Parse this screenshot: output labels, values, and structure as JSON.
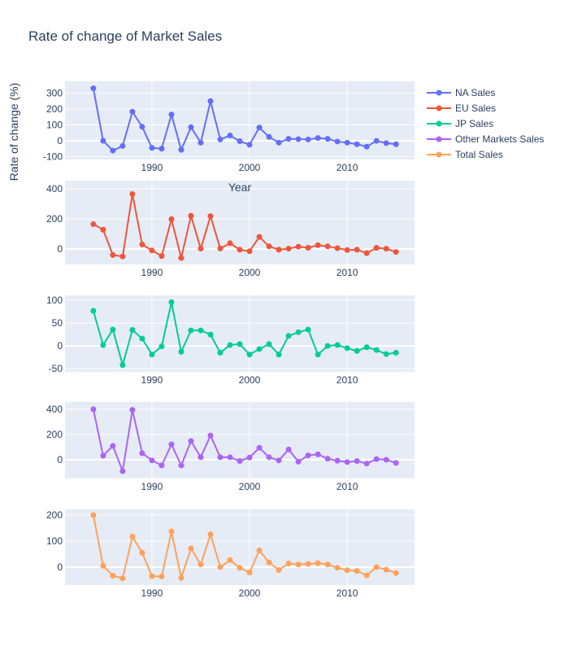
{
  "chart_data": {
    "type": "line",
    "title": "Rate of change of Market Sales",
    "xlabel": "Year",
    "ylabel": "Rate of change (%)",
    "legend_position": "top-right",
    "grid": true,
    "x": [
      1984,
      1985,
      1986,
      1987,
      1988,
      1989,
      1990,
      1991,
      1992,
      1993,
      1994,
      1995,
      1996,
      1997,
      1998,
      1999,
      2000,
      2001,
      2002,
      2003,
      2004,
      2005,
      2006,
      2007,
      2008,
      2009,
      2010,
      2011,
      2012,
      2013,
      2014,
      2015
    ],
    "xlim": [
      1981.1,
      2016.9
    ],
    "xticks": [
      "1990",
      "2000",
      "2010"
    ],
    "series": [
      {
        "name": "NA Sales",
        "color": "#636efa",
        "ylim": [
          -118,
          374
        ],
        "yticks": [
          "-100",
          "0",
          "100",
          "200",
          "300"
        ],
        "values": [
          330,
          0,
          -62,
          -33,
          183,
          88,
          -45,
          -50,
          165,
          -57,
          85,
          -12,
          250,
          8,
          33,
          -3,
          -25,
          83,
          24,
          -12,
          12,
          10,
          8,
          17,
          12,
          -5,
          -12,
          -22,
          -37,
          -1,
          -15,
          -22
        ]
      },
      {
        "name": "EU Sales",
        "color": "#ef553b",
        "ylim": [
          -103,
          454
        ],
        "yticks": [
          "0",
          "200",
          "400"
        ],
        "values": [
          165,
          128,
          -40,
          -50,
          365,
          30,
          -10,
          -47,
          198,
          -60,
          220,
          2,
          218,
          3,
          38,
          -5,
          -15,
          80,
          17,
          -5,
          2,
          15,
          8,
          25,
          17,
          5,
          -7,
          -5,
          -28,
          7,
          2,
          -20
        ]
      },
      {
        "name": "JP Sales",
        "color": "#00cc96",
        "ylim": [
          -57,
          111
        ],
        "yticks": [
          "-50",
          "0",
          "50",
          "100"
        ],
        "values": [
          77,
          2,
          36,
          -42,
          35,
          16,
          -19,
          -1,
          96,
          -13,
          34,
          34,
          25,
          -15,
          2,
          4,
          -19,
          -7,
          4,
          -19,
          22,
          30,
          36,
          -19,
          0,
          2,
          -5,
          -11,
          -3,
          -9,
          -18,
          -15
        ]
      },
      {
        "name": "Other Markets Sales",
        "color": "#ab63fa",
        "ylim": [
          -148,
          458
        ],
        "yticks": [
          "0",
          "200",
          "400"
        ],
        "values": [
          400,
          32,
          110,
          -90,
          395,
          52,
          -5,
          -45,
          122,
          -45,
          148,
          20,
          192,
          20,
          20,
          -10,
          18,
          95,
          20,
          -5,
          82,
          -15,
          35,
          43,
          8,
          -8,
          -18,
          -10,
          -30,
          5,
          0,
          -25
        ]
      },
      {
        "name": "Total Sales",
        "color": "#ffa15a",
        "ylim": [
          -69,
          222
        ],
        "yticks": [
          "0",
          "100",
          "200"
        ],
        "values": [
          200,
          5,
          -33,
          -43,
          117,
          55,
          -35,
          -36,
          137,
          -42,
          72,
          10,
          126,
          0,
          27,
          -3,
          -21,
          64,
          18,
          -11,
          14,
          10,
          12,
          15,
          10,
          -3,
          -12,
          -15,
          -32,
          0,
          -10,
          -23
        ]
      }
    ]
  }
}
